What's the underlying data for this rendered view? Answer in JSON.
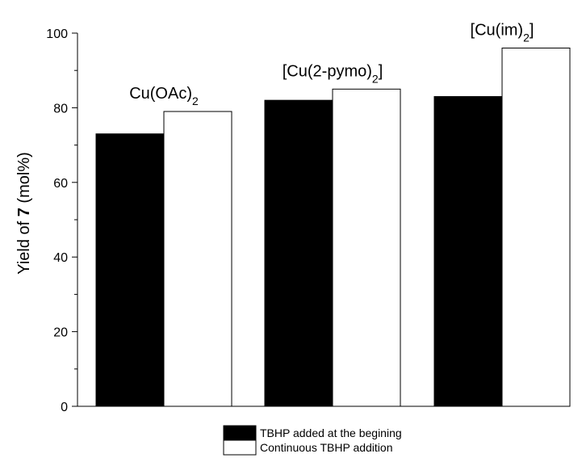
{
  "chart_data": {
    "type": "bar",
    "title": "",
    "xlabel": "",
    "ylabel": {
      "prefix": "Yield of ",
      "bold": "7",
      "suffix": " (mol%)"
    },
    "ylim": [
      0,
      100
    ],
    "yticks": [
      0,
      20,
      40,
      60,
      80,
      100
    ],
    "categories": [
      {
        "base": "Cu(OAc)",
        "sub": "2",
        "after": ""
      },
      {
        "base": "[Cu(2-pymo)",
        "sub": "2",
        "after": "]"
      },
      {
        "base": "[Cu(im)",
        "sub": "2",
        "after": "]"
      }
    ],
    "series": [
      {
        "name": "TBHP added at the begining",
        "color": "#000000",
        "values": [
          73,
          82,
          83
        ]
      },
      {
        "name": "Continuous TBHP addition",
        "color": "#ffffff",
        "values": [
          79,
          85,
          96
        ]
      }
    ],
    "legend_position": "bottom-center",
    "grid": false
  }
}
